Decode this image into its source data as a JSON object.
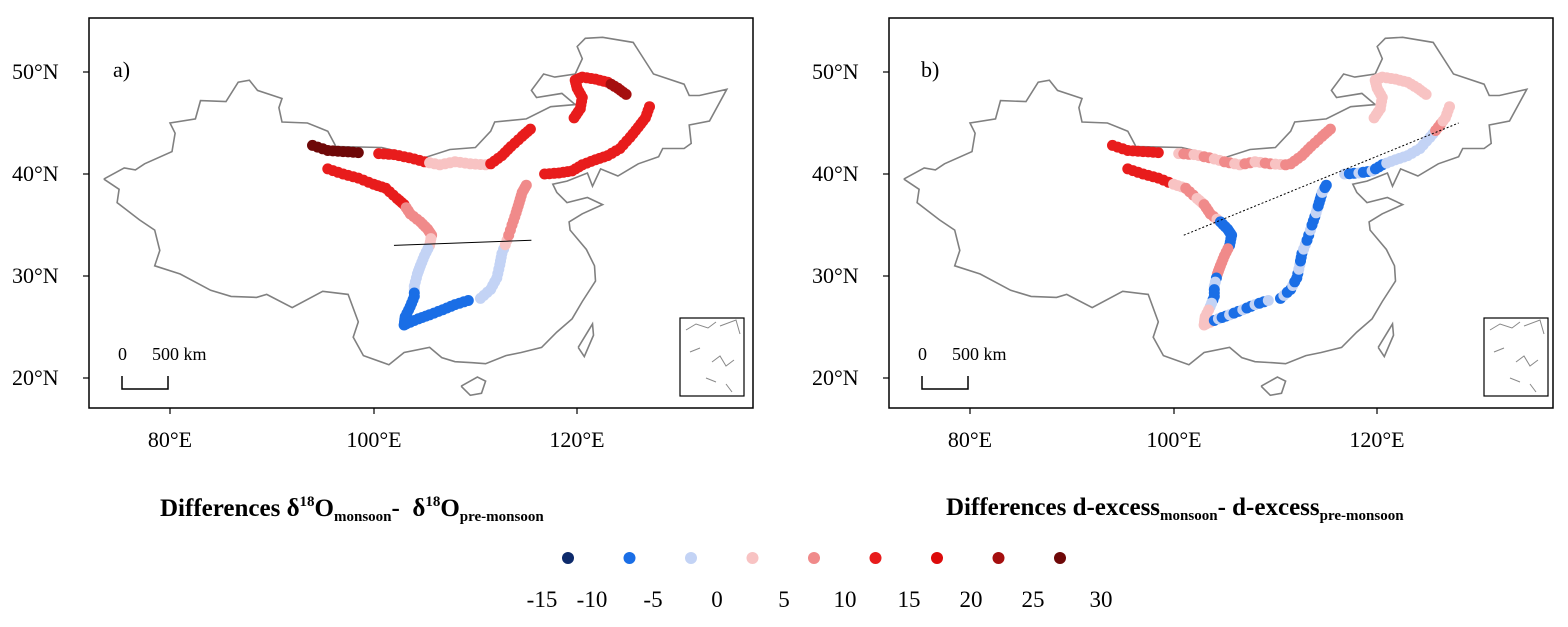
{
  "panels": [
    {
      "id": "a",
      "panel_label": "a)",
      "lat_labels": [
        "50°N",
        "40°N",
        "30°N",
        "20°N"
      ],
      "lon_labels": [
        "80°E",
        "100°E",
        "120°E"
      ],
      "scalebar": {
        "zero": "0",
        "distance": "500 km"
      },
      "caption": {
        "main": "Differences δ",
        "sup1": "18",
        "o1": "O",
        "sub1": "monsoon",
        "dash": "-",
        "sup2": "18",
        "o2": "O",
        "sub2": "pre-monsoon"
      },
      "boundary_line_lat": [
        33.0,
        33.5
      ],
      "boundary_line_lon": [
        102.0,
        115.5
      ]
    },
    {
      "id": "b",
      "panel_label": "b)",
      "lat_labels": [
        "50°N",
        "40°N",
        "30°N",
        "20°N"
      ],
      "lon_labels": [
        "80°E",
        "100°E",
        "120°E"
      ],
      "scalebar": {
        "zero": "0",
        "distance": "500 km"
      },
      "caption": {
        "main": "Differences d-excess",
        "sub1": "monsoon",
        "dash": "-",
        "main2": " d-excess",
        "sub2": "pre-monsoon"
      },
      "boundary_line_lat": [
        34.0,
        45.0
      ],
      "boundary_line_lon": [
        101.0,
        128.0
      ]
    }
  ],
  "legend": {
    "labels": [
      "-15",
      "-10",
      "-5",
      "0",
      "5",
      "10",
      "15",
      "20",
      "25",
      "30"
    ],
    "colors": [
      "#0d2a6b",
      "#1a6ee6",
      "#c3d3f5",
      "#f8c3c3",
      "#f08a8a",
      "#e81c1c",
      "#dc0a0a",
      "#a50f0f",
      "#6e0808"
    ]
  }
}
